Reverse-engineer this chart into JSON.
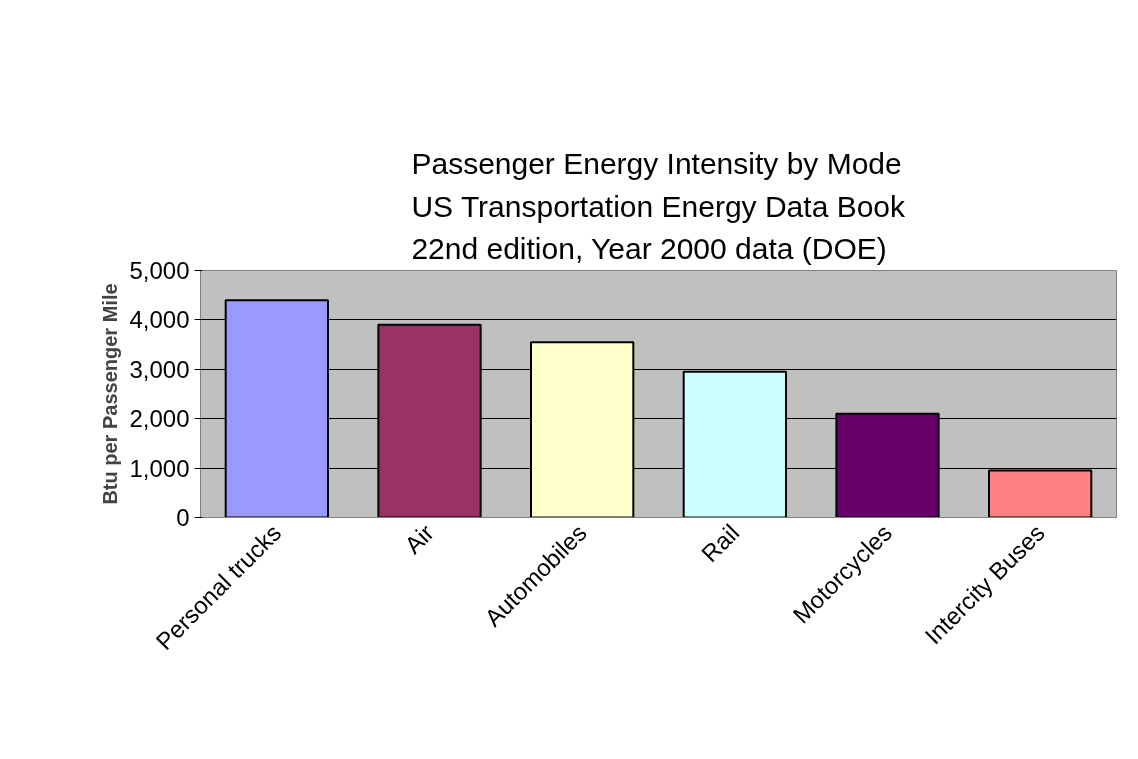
{
  "chart_data": {
    "type": "bar",
    "title": "Passenger Energy Intensity by Mode\nUS Transportation Energy Data Book\n22nd edition, Year 2000 data (DOE)",
    "ylabel": "Btu per Passenger Mile",
    "categories": [
      "Personal trucks",
      "Air",
      "Automobiles",
      "Rail",
      "Motorcycles",
      "Intercity Buses"
    ],
    "values": [
      4400,
      3900,
      3550,
      2950,
      2100,
      950
    ],
    "colors": [
      "#9999ff",
      "#993366",
      "#ffffcc",
      "#ccffff",
      "#660066",
      "#ff8080"
    ],
    "ylim": [
      0,
      5000
    ],
    "yticks": [
      {
        "value": 0,
        "label": "0"
      },
      {
        "value": 1000,
        "label": "1,000"
      },
      {
        "value": 2000,
        "label": "2,000"
      },
      {
        "value": 3000,
        "label": "3,000"
      },
      {
        "value": 4000,
        "label": "4,000"
      },
      {
        "value": 5000,
        "label": "5,000"
      }
    ],
    "grid": "y"
  }
}
